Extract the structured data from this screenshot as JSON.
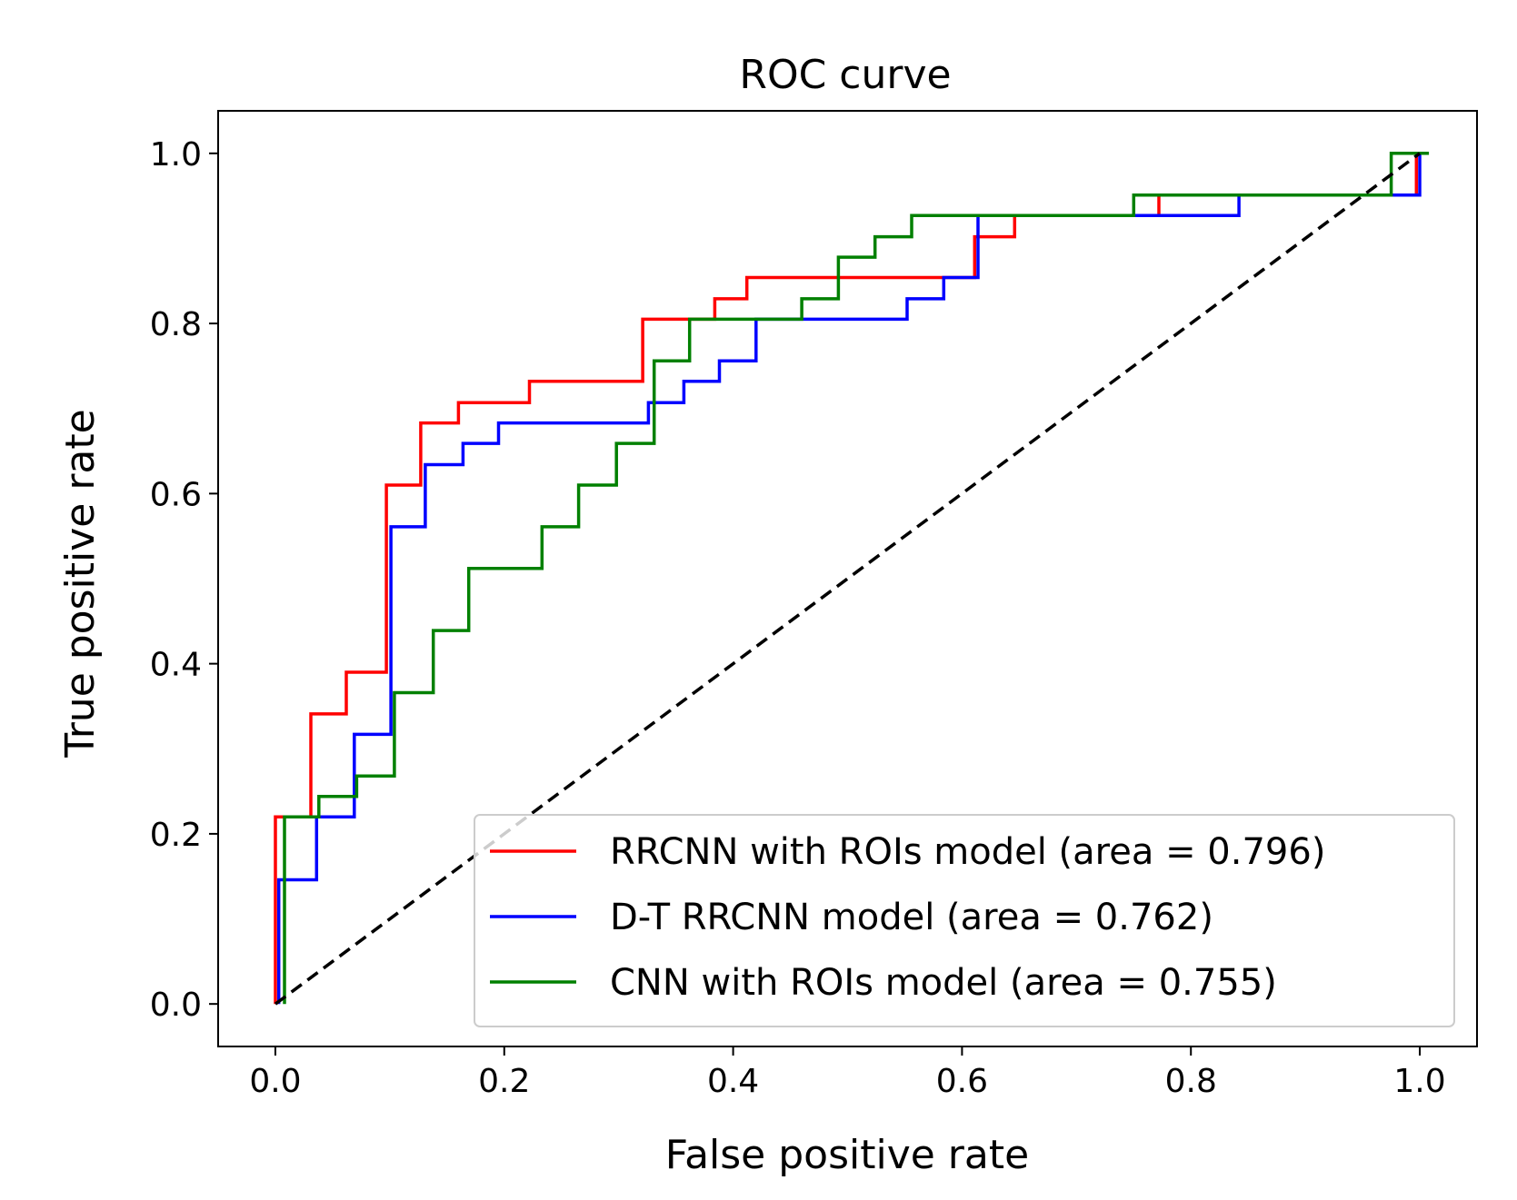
{
  "chart_data": {
    "type": "line",
    "title": "ROC curve",
    "xlabel": "False positive rate",
    "ylabel": "True positive rate",
    "xlim": [
      -0.05,
      1.05
    ],
    "ylim": [
      -0.05,
      1.05
    ],
    "xticks": [
      0.0,
      0.2,
      0.4,
      0.6,
      0.8,
      1.0
    ],
    "yticks": [
      0.0,
      0.2,
      0.4,
      0.6,
      0.8,
      1.0
    ],
    "xtick_labels": [
      "0.0",
      "0.2",
      "0.4",
      "0.6",
      "0.8",
      "1.0"
    ],
    "ytick_labels": [
      "0.0",
      "0.2",
      "0.4",
      "0.6",
      "0.8",
      "1.0"
    ],
    "legend_position": "bottom-right",
    "series": [
      {
        "name": "RRCNN with ROIs model",
        "label": "RRCNN with ROIs model (area = 0.796)",
        "auc": 0.796,
        "color": "#ff0000",
        "linestyle": "solid",
        "x": [
          0.0,
          0.0,
          0.031,
          0.031,
          0.062,
          0.062,
          0.097,
          0.097,
          0.127,
          0.127,
          0.16,
          0.16,
          0.222,
          0.222,
          0.321,
          0.321,
          0.384,
          0.384,
          0.412,
          0.412,
          0.611,
          0.611,
          0.646,
          0.646,
          0.772,
          0.772,
          0.997,
          0.997,
          1.0
        ],
        "y": [
          0.0,
          0.22,
          0.22,
          0.341,
          0.341,
          0.39,
          0.39,
          0.61,
          0.61,
          0.683,
          0.683,
          0.707,
          0.707,
          0.732,
          0.732,
          0.805,
          0.805,
          0.829,
          0.829,
          0.854,
          0.854,
          0.902,
          0.902,
          0.927,
          0.927,
          0.951,
          0.951,
          1.0,
          1.0
        ]
      },
      {
        "name": "D-T RRCNN model",
        "label": "D-T RRCNN model (area = 0.762)",
        "auc": 0.762,
        "color": "#0000ff",
        "linestyle": "solid",
        "x": [
          0.003,
          0.003,
          0.036,
          0.036,
          0.069,
          0.069,
          0.101,
          0.101,
          0.131,
          0.131,
          0.164,
          0.164,
          0.195,
          0.195,
          0.326,
          0.326,
          0.357,
          0.357,
          0.388,
          0.388,
          0.42,
          0.42,
          0.552,
          0.552,
          0.584,
          0.584,
          0.614,
          0.614,
          0.842,
          0.842,
          1.0,
          1.0
        ],
        "y": [
          0.0,
          0.146,
          0.146,
          0.22,
          0.22,
          0.317,
          0.317,
          0.561,
          0.561,
          0.634,
          0.634,
          0.659,
          0.659,
          0.683,
          0.683,
          0.707,
          0.707,
          0.732,
          0.732,
          0.756,
          0.756,
          0.805,
          0.805,
          0.829,
          0.829,
          0.854,
          0.854,
          0.927,
          0.927,
          0.951,
          0.951,
          1.0
        ]
      },
      {
        "name": "CNN with ROIs model",
        "label": "CNN with ROIs model (area = 0.755)",
        "auc": 0.755,
        "color": "#008000",
        "linestyle": "solid",
        "x": [
          0.008,
          0.008,
          0.038,
          0.038,
          0.071,
          0.071,
          0.104,
          0.104,
          0.138,
          0.138,
          0.169,
          0.169,
          0.233,
          0.233,
          0.265,
          0.265,
          0.298,
          0.298,
          0.331,
          0.331,
          0.362,
          0.362,
          0.46,
          0.46,
          0.492,
          0.492,
          0.524,
          0.524,
          0.556,
          0.556,
          0.75,
          0.75,
          0.975,
          0.975,
          1.008
        ],
        "y": [
          0.0,
          0.22,
          0.22,
          0.244,
          0.244,
          0.268,
          0.268,
          0.366,
          0.366,
          0.439,
          0.439,
          0.512,
          0.512,
          0.561,
          0.561,
          0.61,
          0.61,
          0.659,
          0.659,
          0.756,
          0.756,
          0.805,
          0.805,
          0.829,
          0.829,
          0.878,
          0.878,
          0.902,
          0.902,
          0.927,
          0.927,
          0.951,
          0.951,
          1.0,
          1.0
        ]
      },
      {
        "name": "chance",
        "color": "#000000",
        "linestyle": "dashed",
        "x": [
          0.0,
          1.0
        ],
        "y": [
          0.0,
          1.0
        ]
      }
    ]
  }
}
